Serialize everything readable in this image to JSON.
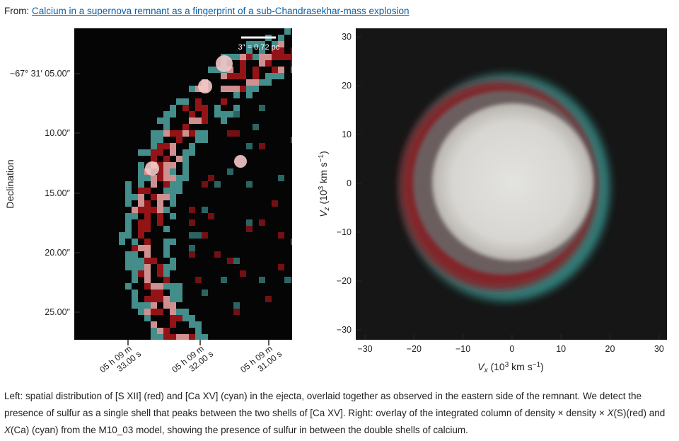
{
  "header": {
    "from_label": "From:",
    "link_text": "Calcium in a supernova remnant as a fingerprint of a sub-Chandrasekhar-mass explosion"
  },
  "left_panel": {
    "scalebar_label": "3″ = 0.72 pc",
    "ylabel": "Declination",
    "yticks": [
      "−67° 31′ 05.00″",
      "10.00″",
      "15.00″",
      "20.00″",
      "25.00″"
    ],
    "xticks": [
      [
        "05 h 09 m",
        "33.00 s"
      ],
      [
        "05 h 09 m",
        "32.00 s"
      ],
      [
        "05 h 09 m",
        "31.00 s"
      ]
    ]
  },
  "right_panel": {
    "yticks": [
      "30",
      "20",
      "10",
      "0",
      "−10",
      "−20",
      "−30"
    ],
    "xticks": [
      "−30",
      "−20",
      "−10",
      "0",
      "10",
      "20",
      "30"
    ],
    "ylabel": {
      "main": "V",
      "sub": "z",
      "rest": " (10",
      "sup1": "3",
      "rest2": " km s",
      "sup2": "−1",
      "end": ")"
    },
    "xlabel": {
      "main": "V",
      "sub": "x",
      "rest": " (10",
      "sup1": "3",
      "rest2": " km s",
      "sup2": "−1",
      "end": ")"
    }
  },
  "caption": {
    "part1": "Left: spatial distribution of [S XII] (red) and [Ca XV] (cyan) in the ejecta, overlaid together as observed in the eastern side of the remnant. We detect the presence of sulfur as a single shell that peaks between the two shells of [Ca XV]. Right: overlay of the integrated column of density × density × ",
    "xs": "X",
    "part2": "(S)(red) and ",
    "xca": "X",
    "part3": "(Ca) (cyan) from the M10_03 model, showing the presence of sulfur in between the double shells of calcium."
  },
  "colors": {
    "link": "#0b5fa5",
    "red_channel": "#b01818",
    "cyan_channel": "#4fa6a3"
  }
}
